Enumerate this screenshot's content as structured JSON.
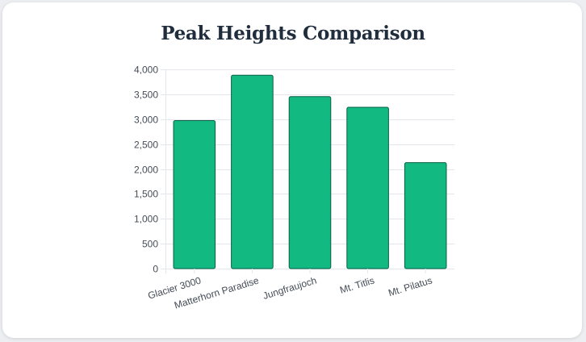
{
  "chart_data": {
    "type": "bar",
    "title": "Peak Heights Comparison",
    "xlabel": "",
    "ylabel": "",
    "categories": [
      "Glacier 3000",
      "Matterhorn Paradise",
      "Jungfraujoch",
      "Mt. Titlis",
      "Mt. Pilatus"
    ],
    "values": [
      2971,
      3883,
      3454,
      3238,
      2128
    ],
    "ylim": [
      0,
      4000
    ],
    "yticks": [
      "0",
      "500",
      "1,000",
      "1,500",
      "2,000",
      "2,500",
      "3,000",
      "3,500",
      "4,000"
    ],
    "ytick_values": [
      0,
      500,
      1000,
      1500,
      2000,
      2500,
      3000,
      3500,
      4000
    ],
    "grid": true,
    "legend": "none",
    "bar_color": "#12b981",
    "bar_border_color": "#065f46"
  }
}
